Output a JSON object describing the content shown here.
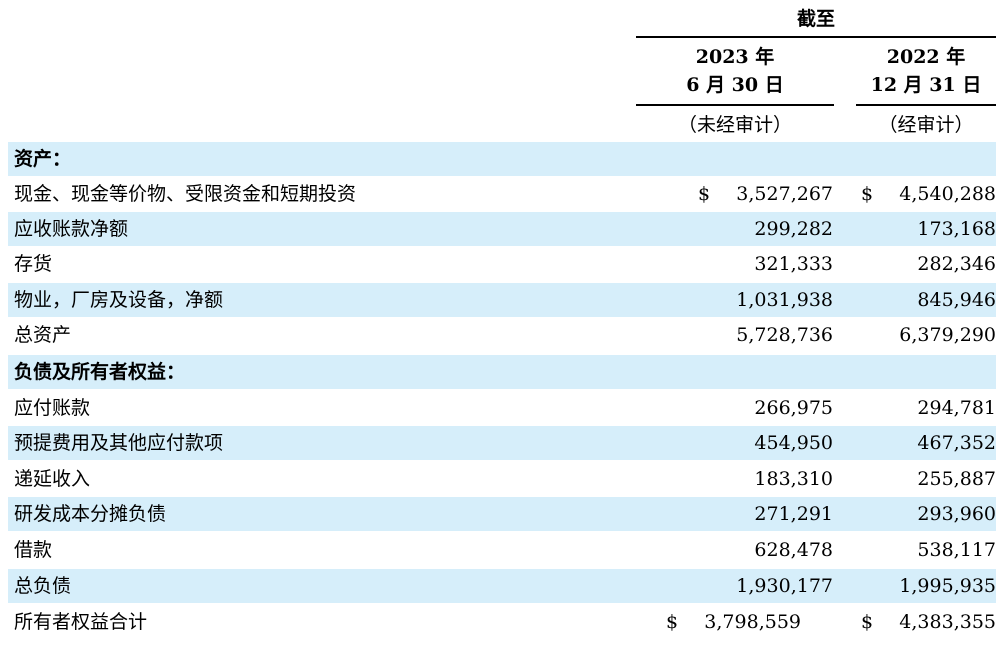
{
  "header": {
    "as_of": "截至",
    "col1_line1": "2023 年",
    "col1_line2": "6 月 30 日",
    "col1_note": "（未经审计）",
    "col2_line1": "2022 年",
    "col2_line2": "12 月 31 日",
    "col2_note": "（经审计）"
  },
  "currency_symbol": "$",
  "rows": [
    {
      "label": "资产：",
      "section": true,
      "col1": "",
      "col2": ""
    },
    {
      "label": "现金、现金等价物、受限资金和短期投资",
      "section": false,
      "col1": "3,527,267",
      "col2": "4,540,288",
      "dollar": true
    },
    {
      "label": "应收账款净额",
      "section": false,
      "col1": "299,282",
      "col2": "173,168"
    },
    {
      "label": "存货",
      "section": false,
      "col1": "321,333",
      "col2": "282,346"
    },
    {
      "label": "物业，厂房及设备，净额",
      "section": false,
      "col1": "1,031,938",
      "col2": "845,946"
    },
    {
      "label": "总资产",
      "section": false,
      "col1": "5,728,736",
      "col2": "6,379,290"
    },
    {
      "label": "负债及所有者权益：",
      "section": true,
      "col1": "",
      "col2": ""
    },
    {
      "label": "应付账款",
      "section": false,
      "col1": "266,975",
      "col2": "294,781"
    },
    {
      "label": "预提费用及其他应付款项",
      "section": false,
      "col1": "454,950",
      "col2": "467,352"
    },
    {
      "label": "递延收入",
      "section": false,
      "col1": "183,310",
      "col2": "255,887"
    },
    {
      "label": "研发成本分摊负债",
      "section": false,
      "col1": "271,291",
      "col2": "293,960"
    },
    {
      "label": "借款",
      "section": false,
      "col1": "628,478",
      "col2": "538,117"
    },
    {
      "label": "总负债",
      "section": false,
      "col1": "1,930,177",
      "col2": "1,995,935"
    },
    {
      "label": "所有者权益合计",
      "section": false,
      "col1": "3,798,559",
      "col2": "4,383,355",
      "dollar": true,
      "shifted": true
    }
  ]
}
